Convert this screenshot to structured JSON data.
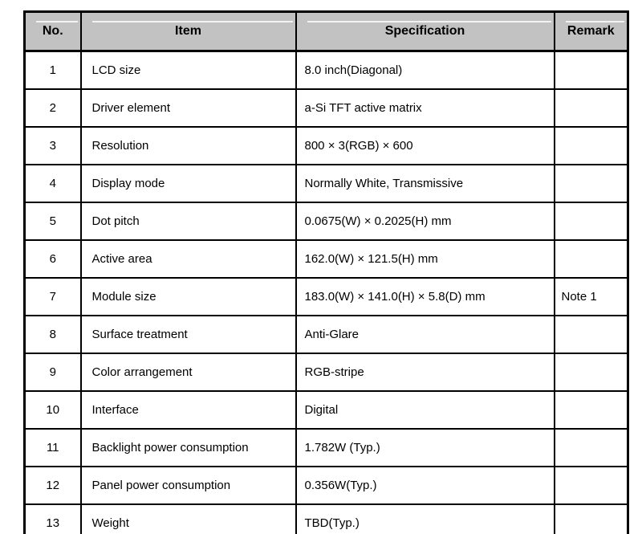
{
  "table": {
    "border_color": "#000000",
    "header_bg": "#c2c2c2",
    "columns": {
      "no": "No.",
      "item": "Item",
      "spec": "Specification",
      "remark": "Remark"
    },
    "rows": [
      {
        "no": "1",
        "item": "LCD size",
        "spec": "8.0 inch(Diagonal)",
        "remark": ""
      },
      {
        "no": "2",
        "item": "Driver element",
        "spec": "a-Si TFT active matrix",
        "remark": ""
      },
      {
        "no": "3",
        "item": "Resolution",
        "spec": "800 × 3(RGB) × 600",
        "remark": ""
      },
      {
        "no": "4",
        "item": "Display mode",
        "spec": "Normally White, Transmissive",
        "remark": ""
      },
      {
        "no": "5",
        "item": "Dot pitch",
        "spec": "0.0675(W) × 0.2025(H) mm",
        "remark": ""
      },
      {
        "no": "6",
        "item": "Active area",
        "spec": "162.0(W) × 121.5(H) mm",
        "remark": ""
      },
      {
        "no": "7",
        "item": "Module size",
        "spec": "183.0(W) × 141.0(H) × 5.8(D) mm",
        "remark": "Note 1"
      },
      {
        "no": "8",
        "item": "Surface treatment",
        "spec": "Anti-Glare",
        "remark": ""
      },
      {
        "no": "9",
        "item": "Color arrangement",
        "spec": "RGB-stripe",
        "remark": ""
      },
      {
        "no": "10",
        "item": "Interface",
        "spec": "Digital",
        "remark": ""
      },
      {
        "no": "11",
        "item": "Backlight power consumption",
        "spec": "1.782W (Typ.)",
        "remark": ""
      },
      {
        "no": "12",
        "item": "Panel power consumption",
        "spec": "0.356W(Typ.)",
        "remark": ""
      },
      {
        "no": "13",
        "item": "Weight",
        "spec": "TBD(Typ.)",
        "remark": ""
      }
    ]
  }
}
